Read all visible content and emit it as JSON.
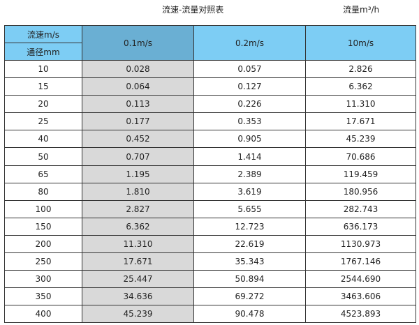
{
  "title": "流速-流量对照表",
  "unit": "流量m³/h",
  "header": {
    "velocity_label": "流速m/s",
    "diameter_label": "通径mm",
    "columns": [
      "0.1m/s",
      "0.2m/s",
      "10m/s"
    ]
  },
  "rows": [
    [
      "10",
      "0.028",
      "0.057",
      "2.826"
    ],
    [
      "15",
      "0.064",
      "0.127",
      "6.362"
    ],
    [
      "20",
      "0.113",
      "0.226",
      "11.310"
    ],
    [
      "25",
      "0.177",
      "0.353",
      "17.671"
    ],
    [
      "40",
      "0.452",
      "0.905",
      "45.239"
    ],
    [
      "50",
      "0.707",
      "1.414",
      "70.686"
    ],
    [
      "65",
      "1.195",
      "2.389",
      "119.459"
    ],
    [
      "80",
      "1.810",
      "3.619",
      "180.956"
    ],
    [
      "100",
      "2.827",
      "5.655",
      "282.743"
    ],
    [
      "150",
      "6.362",
      "12.723",
      "636.173"
    ],
    [
      "200",
      "11.310",
      "22.619",
      "1130.973"
    ],
    [
      "250",
      "17.671",
      "35.343",
      "1767.146"
    ],
    [
      "300",
      "25.447",
      "50.894",
      "2544.690"
    ],
    [
      "350",
      "34.636",
      "69.272",
      "3463.606"
    ],
    [
      "400",
      "45.239",
      "90.478",
      "4523.893"
    ]
  ],
  "colors": {
    "header": "#7dcdf4",
    "header_selected": "#6aafd3",
    "column_highlight": "#d9d9d9"
  }
}
